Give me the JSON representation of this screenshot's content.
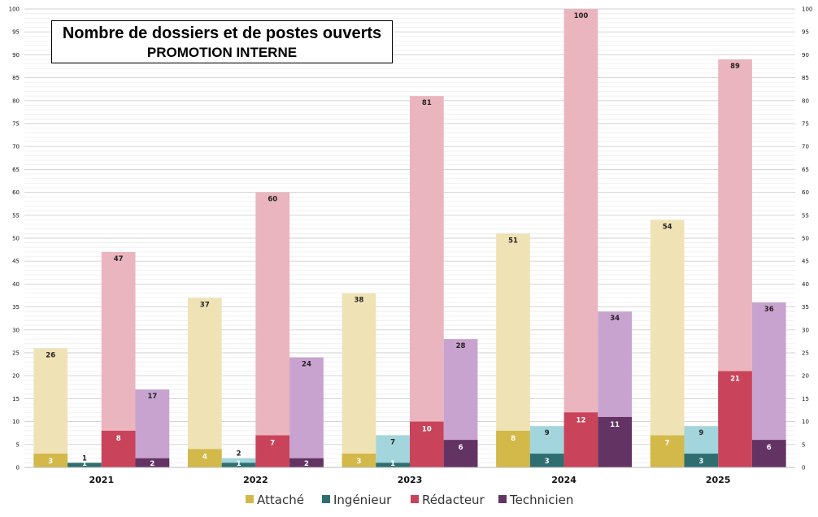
{
  "chart_data": {
    "type": "bar",
    "title": [
      "Nombre de dossiers et de postes ouverts",
      "PROMOTION INTERNE"
    ],
    "categories": [
      "2021",
      "2022",
      "2023",
      "2024",
      "2025"
    ],
    "series": [
      {
        "name": "Attaché",
        "dossiers": [
          26,
          37,
          38,
          51,
          54
        ],
        "postes": [
          3,
          4,
          3,
          8,
          7
        ],
        "light_color": "#efe3b6",
        "dark_color": "#d2b94a"
      },
      {
        "name": "Ingénieur",
        "dossiers": [
          1,
          2,
          7,
          9,
          9
        ],
        "postes": [
          1,
          1,
          1,
          3,
          3
        ],
        "light_color": "#a3d5dc",
        "dark_color": "#2e6e70"
      },
      {
        "name": "Rédacteur",
        "dossiers": [
          47,
          60,
          81,
          100,
          89
        ],
        "postes": [
          8,
          7,
          10,
          12,
          21
        ],
        "light_color": "#eab5bf",
        "dark_color": "#c9435a"
      },
      {
        "name": "Technicien",
        "dossiers": [
          17,
          24,
          28,
          34,
          36
        ],
        "postes": [
          2,
          2,
          6,
          11,
          6
        ],
        "light_color": "#c9a3cf",
        "dark_color": "#633363"
      }
    ],
    "ylim": [
      0,
      100
    ],
    "major_ticks": [
      0,
      5,
      10,
      15,
      20,
      25,
      30,
      35,
      40,
      45,
      50,
      55,
      60,
      65,
      70,
      75,
      80,
      85,
      90,
      95,
      100
    ],
    "minor_gridlines": true,
    "legend_position": "bottom-center"
  }
}
